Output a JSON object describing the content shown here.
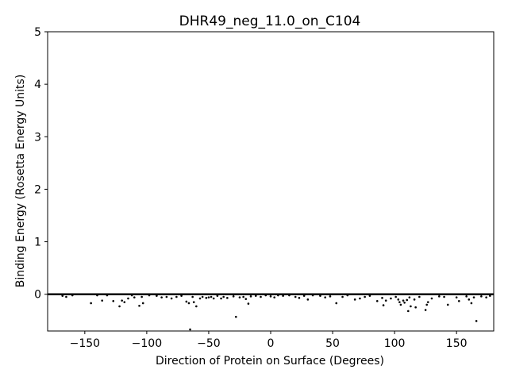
{
  "chart_data": {
    "type": "scatter",
    "title": "DHR49_neg_11.0_on_C104",
    "xlabel": "Direction of Protein on Surface (Degrees)",
    "ylabel": "Binding Energy (Rosetta Energy Units)",
    "xlim": [
      -180,
      180
    ],
    "ylim": [
      -0.7,
      5
    ],
    "xticks": [
      -150,
      -100,
      -50,
      0,
      50,
      100,
      150
    ],
    "xtick_labels": [
      "−150",
      "−100",
      "−50",
      "0",
      "50",
      "100",
      "150"
    ],
    "yticks": [
      0,
      1,
      2,
      3,
      4,
      5
    ],
    "ytick_labels": [
      "0",
      "1",
      "2",
      "3",
      "4",
      "5"
    ],
    "grid": false,
    "marker_color": "#000000",
    "baseline_y": 0,
    "series": [
      {
        "points": [
          [
            -168,
            -0.03
          ],
          [
            -165,
            -0.05
          ],
          [
            -160,
            -0.02
          ],
          [
            -145,
            -0.17
          ],
          [
            -140,
            -0.02
          ],
          [
            -136,
            -0.12
          ],
          [
            -132,
            -0.02
          ],
          [
            -127,
            -0.13
          ],
          [
            -122,
            -0.23
          ],
          [
            -120,
            -0.12
          ],
          [
            -118,
            -0.15
          ],
          [
            -115,
            -0.08
          ],
          [
            -112,
            -0.02
          ],
          [
            -110,
            -0.06
          ],
          [
            -106,
            -0.22
          ],
          [
            -104,
            -0.05
          ],
          [
            -103,
            -0.17
          ],
          [
            -98,
            -0.02
          ],
          [
            -92,
            -0.03
          ],
          [
            -88,
            -0.06
          ],
          [
            -84,
            -0.05
          ],
          [
            -80,
            -0.08
          ],
          [
            -76,
            -0.05
          ],
          [
            -72,
            -0.03
          ],
          [
            -68,
            -0.14
          ],
          [
            -66,
            -0.17
          ],
          [
            -65,
            -0.67
          ],
          [
            -63,
            -0.05
          ],
          [
            -62,
            -0.15
          ],
          [
            -60,
            -0.23
          ],
          [
            -57,
            -0.08
          ],
          [
            -55,
            -0.05
          ],
          [
            -52,
            -0.07
          ],
          [
            -50,
            -0.06
          ],
          [
            -48,
            -0.05
          ],
          [
            -46,
            -0.08
          ],
          [
            -43,
            -0.03
          ],
          [
            -40,
            -0.08
          ],
          [
            -38,
            -0.05
          ],
          [
            -35,
            -0.07
          ],
          [
            -30,
            -0.04
          ],
          [
            -28,
            -0.43
          ],
          [
            -25,
            -0.06
          ],
          [
            -22,
            -0.05
          ],
          [
            -20,
            -0.09
          ],
          [
            -18,
            -0.18
          ],
          [
            -16,
            -0.04
          ],
          [
            -12,
            -0.03
          ],
          [
            -8,
            -0.05
          ],
          [
            -4,
            -0.02
          ],
          [
            0,
            -0.04
          ],
          [
            3,
            -0.06
          ],
          [
            6,
            -0.02
          ],
          [
            10,
            -0.03
          ],
          [
            15,
            -0.02
          ],
          [
            20,
            -0.05
          ],
          [
            23,
            -0.07
          ],
          [
            27,
            -0.03
          ],
          [
            30,
            -0.1
          ],
          [
            34,
            -0.02
          ],
          [
            40,
            -0.03
          ],
          [
            44,
            -0.06
          ],
          [
            48,
            -0.04
          ],
          [
            53,
            -0.17
          ],
          [
            58,
            -0.05
          ],
          [
            62,
            -0.02
          ],
          [
            68,
            -0.1
          ],
          [
            72,
            -0.08
          ],
          [
            76,
            -0.05
          ],
          [
            80,
            -0.03
          ],
          [
            86,
            -0.13
          ],
          [
            90,
            -0.07
          ],
          [
            91,
            -0.21
          ],
          [
            93,
            -0.12
          ],
          [
            97,
            -0.08
          ],
          [
            101,
            -0.05
          ],
          [
            103,
            -0.1
          ],
          [
            104,
            -0.15
          ],
          [
            105,
            -0.2
          ],
          [
            107,
            -0.12
          ],
          [
            108,
            -0.16
          ],
          [
            110,
            -0.11
          ],
          [
            111,
            -0.32
          ],
          [
            112,
            -0.06
          ],
          [
            113,
            -0.23
          ],
          [
            116,
            -0.1
          ],
          [
            117,
            -0.25
          ],
          [
            120,
            -0.05
          ],
          [
            125,
            -0.3
          ],
          [
            126,
            -0.2
          ],
          [
            127,
            -0.15
          ],
          [
            130,
            -0.08
          ],
          [
            136,
            -0.04
          ],
          [
            140,
            -0.05
          ],
          [
            143,
            -0.2
          ],
          [
            150,
            -0.06
          ],
          [
            152,
            -0.13
          ],
          [
            158,
            -0.04
          ],
          [
            160,
            -0.1
          ],
          [
            162,
            -0.17
          ],
          [
            164,
            -0.06
          ],
          [
            166,
            -0.51
          ],
          [
            170,
            -0.04
          ],
          [
            174,
            -0.06
          ],
          [
            177,
            -0.03
          ]
        ]
      }
    ]
  }
}
